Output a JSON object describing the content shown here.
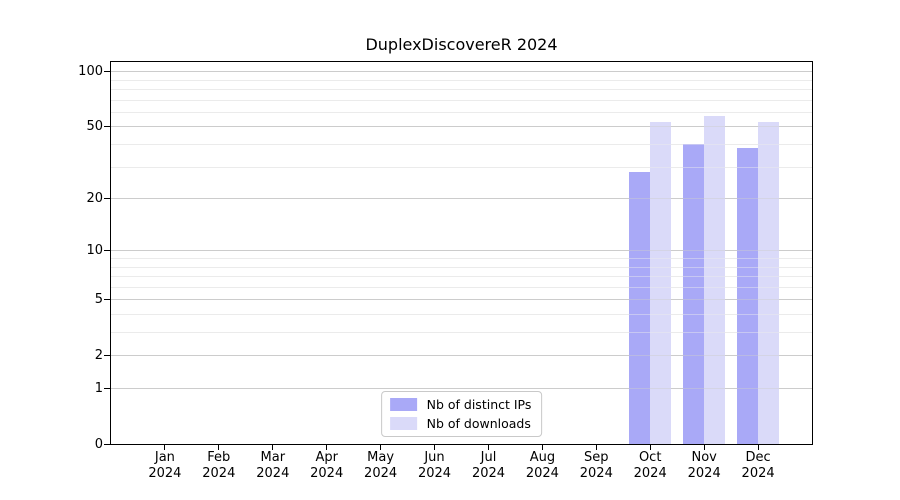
{
  "chart_data": {
    "type": "bar",
    "title": "DuplexDiscovereR 2024",
    "categories": [
      "Jan",
      "Feb",
      "Mar",
      "Apr",
      "May",
      "Jun",
      "Jul",
      "Aug",
      "Sep",
      "Oct",
      "Nov",
      "Dec"
    ],
    "x_year_label": "2024",
    "series": [
      {
        "name": "Nb of distinct IPs",
        "color": "#a9a9f7",
        "values": [
          0,
          0,
          0,
          0,
          0,
          0,
          0,
          0,
          0,
          28,
          40,
          38
        ]
      },
      {
        "name": "Nb of downloads",
        "color": "#dadaf9",
        "values": [
          0,
          0,
          0,
          0,
          0,
          0,
          0,
          0,
          0,
          53,
          57,
          53
        ]
      }
    ],
    "yscale": "log1p",
    "ylim": [
      0,
      112
    ],
    "yticks_major": [
      0,
      1,
      2,
      5,
      10,
      20,
      50,
      100
    ],
    "yticks_minor": [
      3,
      4,
      6,
      7,
      8,
      9,
      30,
      40,
      60,
      70,
      80,
      90
    ],
    "grid": "horizontal",
    "legend_position": "lower center",
    "colors": {
      "grid_major": "#cccccc",
      "grid_minor": "#ebebeb",
      "spine": "#000000",
      "text": "#000000",
      "background": "#ffffff"
    }
  }
}
